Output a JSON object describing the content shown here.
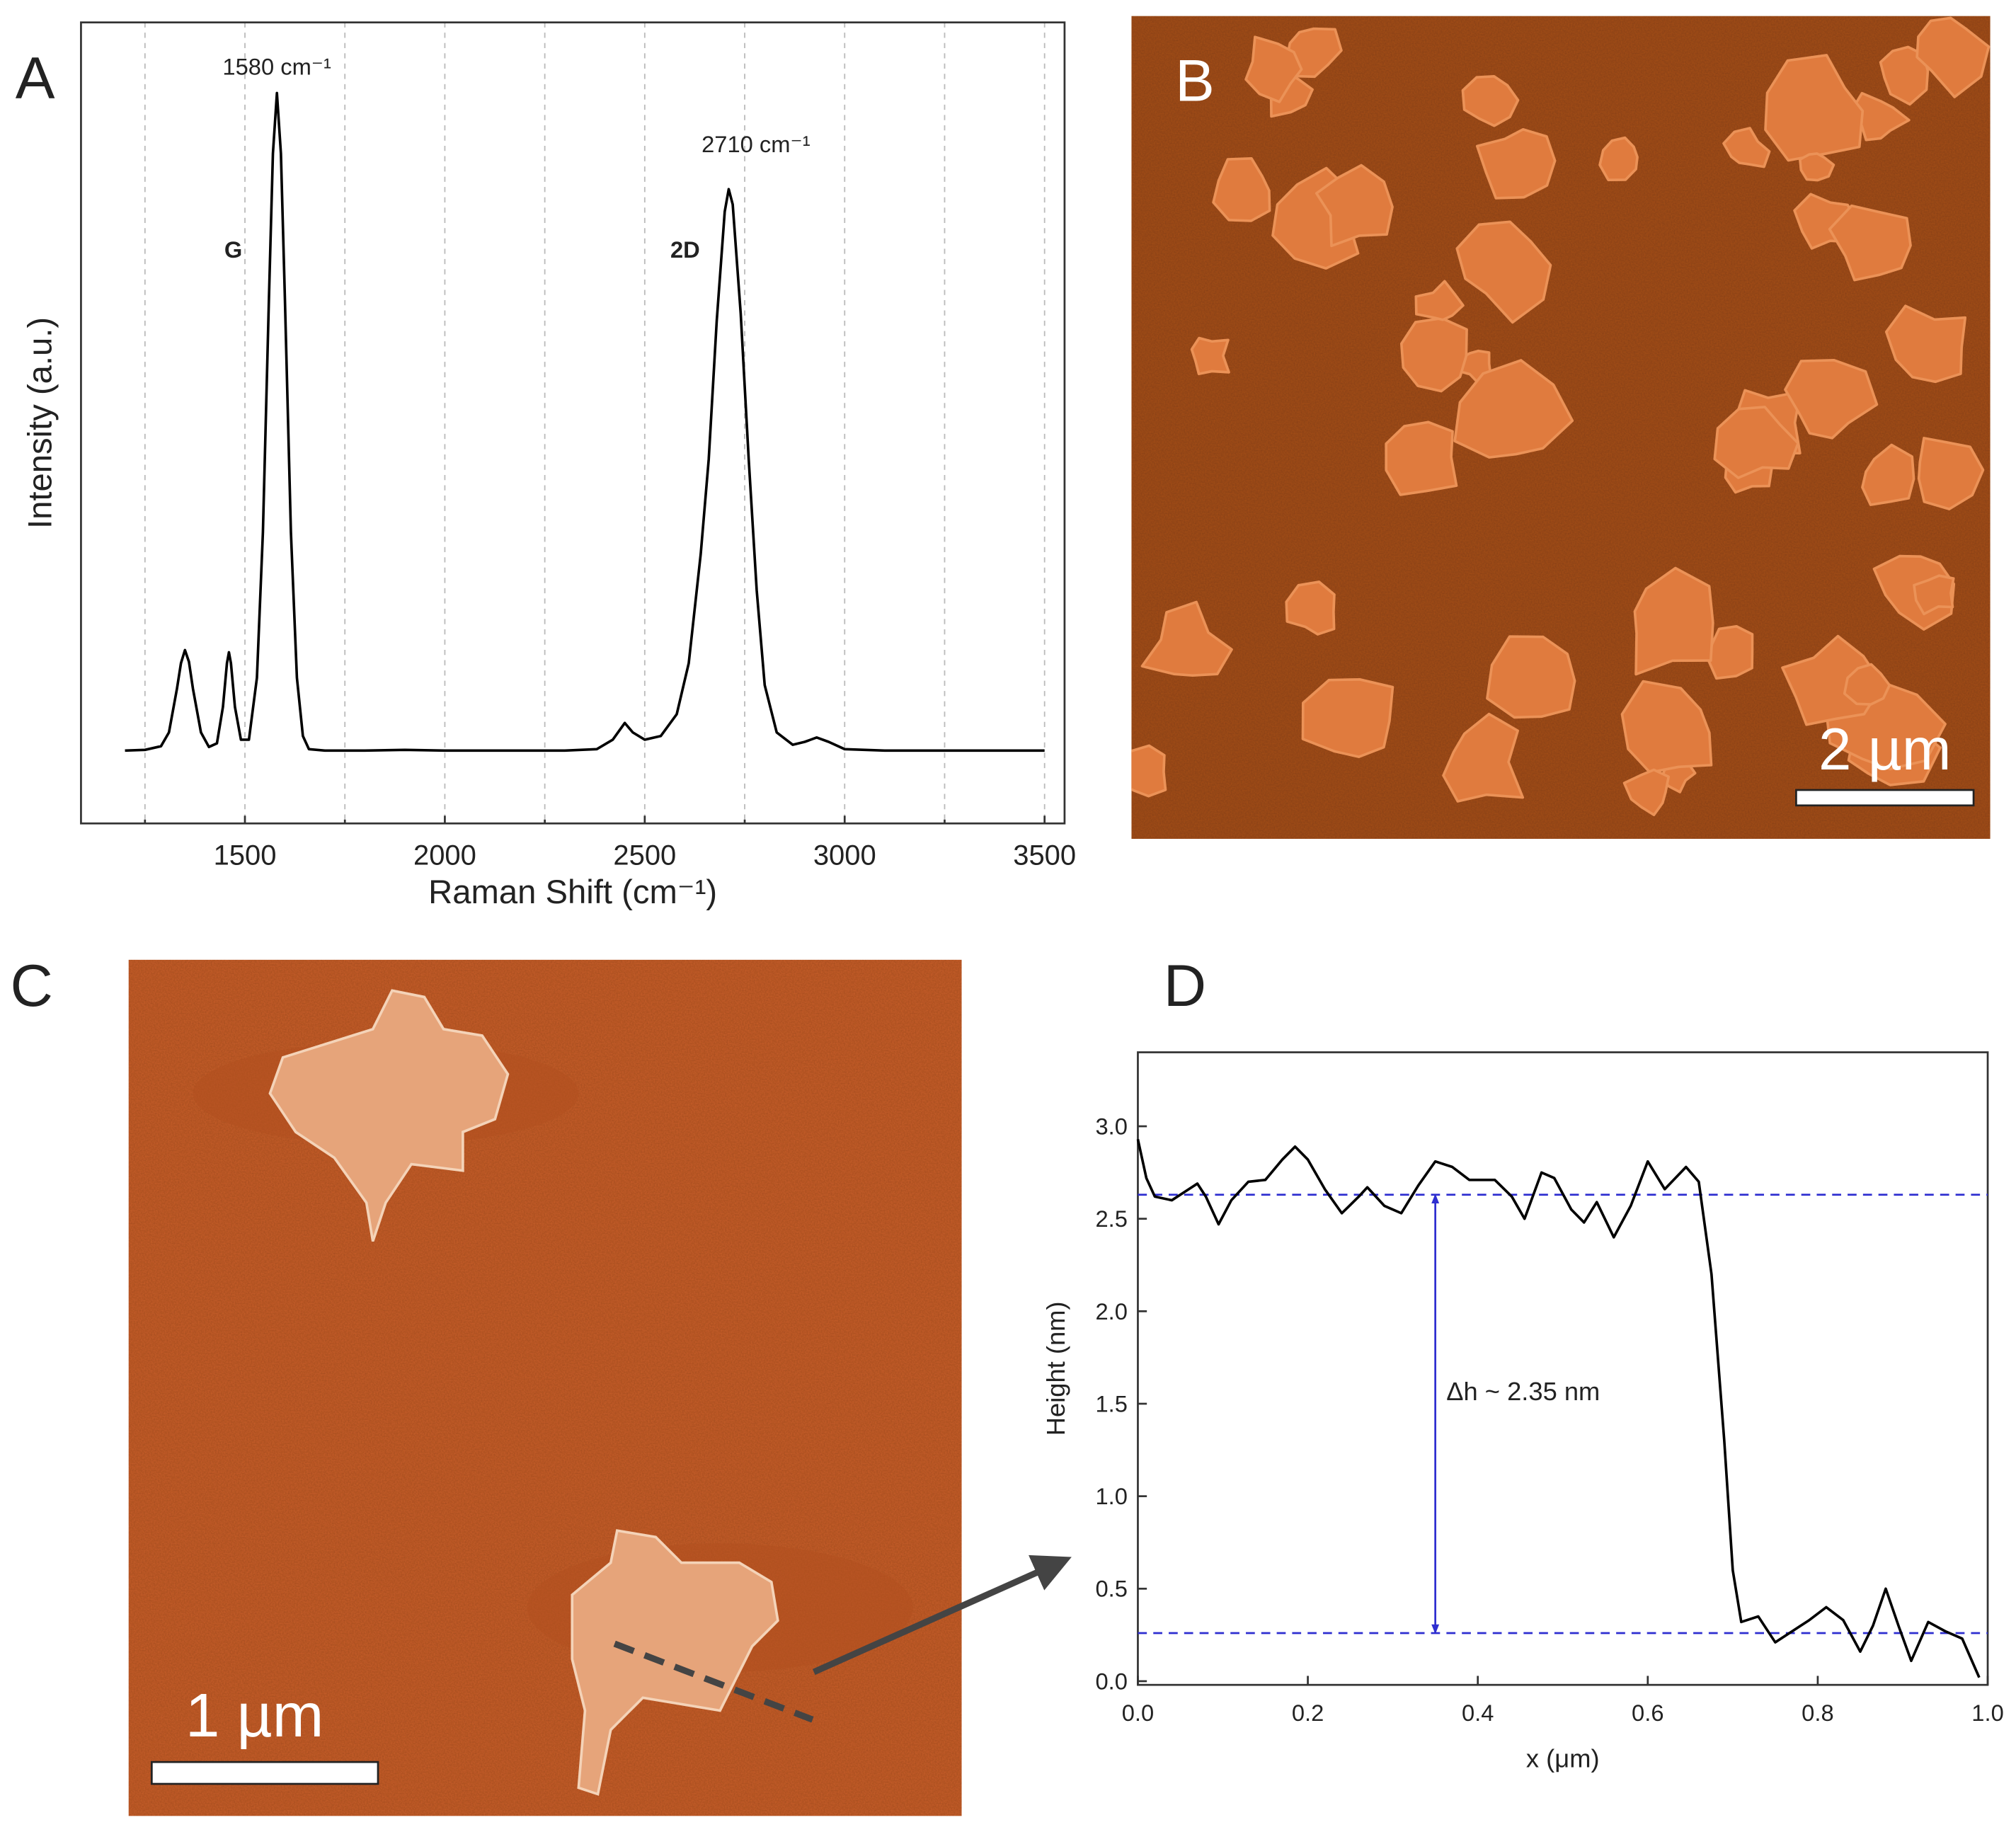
{
  "panel_labels": [
    "A",
    "B",
    "C",
    "D"
  ],
  "scale_bars": [
    "2 µm",
    "1 µm"
  ],
  "chart_data": [
    {
      "type": "line",
      "x_label": "Raman Shift (cm⁻¹)",
      "y_label": "Intensity (a.u.)",
      "xlim": [
        1090,
        3550
      ],
      "ylim": [
        0,
        1.1
      ],
      "xticks": [
        1500,
        2000,
        2500,
        3000,
        3500
      ],
      "x_minor_ticks": [
        1250,
        1750,
        2250,
        2750,
        3250
      ],
      "grid": true,
      "color": "#000000",
      "annotations": [
        {
          "text": "1580 cm⁻¹",
          "x": 1580,
          "y": 1.028
        },
        {
          "text": "G",
          "x": 1471,
          "y": 0.777
        },
        {
          "text": "2D",
          "x": 2601,
          "y": 0.777
        },
        {
          "text": "2710 cm⁻¹",
          "x": 2778,
          "y": 0.922
        }
      ],
      "x": [
        1200,
        1250,
        1290,
        1310,
        1330,
        1340,
        1350,
        1360,
        1370,
        1390,
        1410,
        1430,
        1445,
        1455,
        1460,
        1465,
        1475,
        1490,
        1510,
        1530,
        1545,
        1560,
        1570,
        1580,
        1590,
        1600,
        1615,
        1630,
        1645,
        1660,
        1700,
        1800,
        1900,
        2000,
        2100,
        2200,
        2300,
        2380,
        2420,
        2450,
        2470,
        2500,
        2540,
        2580,
        2610,
        2640,
        2660,
        2680,
        2700,
        2710,
        2720,
        2740,
        2760,
        2780,
        2800,
        2830,
        2870,
        2900,
        2930,
        2960,
        3000,
        3100,
        3200,
        3300,
        3400,
        3500
      ],
      "values": [
        0.1,
        0.101,
        0.106,
        0.125,
        0.185,
        0.22,
        0.238,
        0.222,
        0.185,
        0.125,
        0.105,
        0.11,
        0.16,
        0.22,
        0.235,
        0.22,
        0.16,
        0.115,
        0.115,
        0.2,
        0.4,
        0.72,
        0.92,
        1.003,
        0.92,
        0.72,
        0.4,
        0.2,
        0.12,
        0.102,
        0.1,
        0.1,
        0.101,
        0.1,
        0.1,
        0.1,
        0.1,
        0.102,
        0.115,
        0.138,
        0.125,
        0.115,
        0.12,
        0.15,
        0.22,
        0.37,
        0.5,
        0.69,
        0.84,
        0.871,
        0.85,
        0.7,
        0.5,
        0.32,
        0.19,
        0.125,
        0.108,
        0.112,
        0.118,
        0.112,
        0.102,
        0.1,
        0.1,
        0.1,
        0.1,
        0.1
      ]
    },
    {
      "type": "line",
      "x_label": "x (μm)",
      "y_label": "Height (nm)",
      "xlim": [
        0,
        1
      ],
      "ylim": [
        -0.02,
        3.4
      ],
      "xticks": [
        {
          "value": 0,
          "label": "0.0"
        },
        {
          "value": 0.2,
          "label": "0.2"
        },
        {
          "value": 0.4,
          "label": "0.4"
        },
        {
          "value": 0.6,
          "label": "0.6"
        },
        {
          "value": 0.8,
          "label": "0.8"
        },
        {
          "value": 1,
          "label": "1.0"
        }
      ],
      "yticks": [
        {
          "value": 0,
          "label": "0.0"
        },
        {
          "value": 0.5,
          "label": "0.5"
        },
        {
          "value": 1,
          "label": "1.0"
        },
        {
          "value": 1.5,
          "label": "1.5"
        },
        {
          "value": 2,
          "label": "2.0"
        },
        {
          "value": 2.5,
          "label": "2.5"
        },
        {
          "value": 3,
          "label": "3.0"
        }
      ],
      "grid": false,
      "color": "#000000",
      "reference_lines": [
        2.63,
        0.26
      ],
      "reference_color": "#2e2ed0",
      "arrow_x": 0.35,
      "annotations": [
        {
          "text": "Δh ~ 2.35 nm",
          "x": 0.363,
          "y": 1.52
        }
      ],
      "x": [
        0,
        0.01,
        0.02,
        0.04,
        0.06,
        0.07,
        0.08,
        0.095,
        0.11,
        0.13,
        0.15,
        0.17,
        0.185,
        0.2,
        0.22,
        0.24,
        0.26,
        0.27,
        0.29,
        0.31,
        0.33,
        0.35,
        0.37,
        0.39,
        0.42,
        0.44,
        0.455,
        0.475,
        0.49,
        0.51,
        0.525,
        0.54,
        0.56,
        0.58,
        0.6,
        0.62,
        0.645,
        0.66,
        0.675,
        0.69,
        0.7,
        0.71,
        0.73,
        0.75,
        0.77,
        0.79,
        0.81,
        0.83,
        0.85,
        0.865,
        0.88,
        0.895,
        0.91,
        0.93,
        0.95,
        0.97,
        0.99
      ],
      "values": [
        2.93,
        2.72,
        2.62,
        2.6,
        2.66,
        2.69,
        2.62,
        2.47,
        2.6,
        2.7,
        2.71,
        2.82,
        2.89,
        2.82,
        2.66,
        2.53,
        2.62,
        2.67,
        2.57,
        2.53,
        2.68,
        2.81,
        2.78,
        2.71,
        2.71,
        2.62,
        2.5,
        2.75,
        2.72,
        2.55,
        2.48,
        2.59,
        2.4,
        2.57,
        2.81,
        2.66,
        2.78,
        2.7,
        2.2,
        1.3,
        0.6,
        0.32,
        0.35,
        0.21,
        0.27,
        0.33,
        0.4,
        0.33,
        0.16,
        0.3,
        0.5,
        0.3,
        0.11,
        0.32,
        0.27,
        0.23,
        0.02
      ]
    }
  ]
}
